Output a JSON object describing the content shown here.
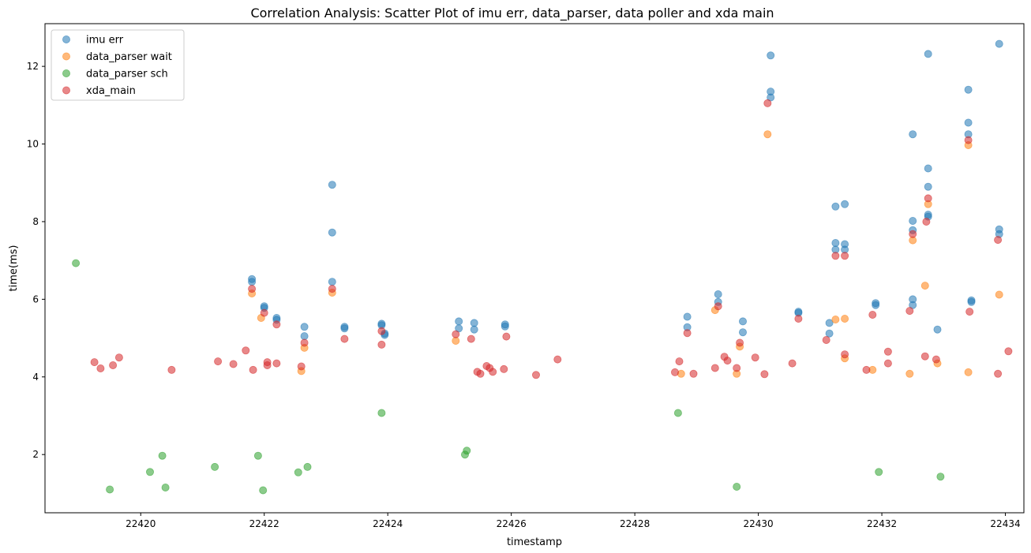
{
  "chart_data": {
    "type": "scatter",
    "title": "Correlation Analysis: Scatter Plot of imu err, data_parser, data poller and xda main",
    "xlabel": "timestamp",
    "ylabel": "time(ms)",
    "xlim": [
      22418.45,
      22434.3
    ],
    "ylim": [
      0.5,
      13.1
    ],
    "xticks": [
      22420,
      22422,
      22424,
      22426,
      22428,
      22430,
      22432,
      22434
    ],
    "yticks": [
      2,
      4,
      6,
      8,
      10,
      12
    ],
    "grid": false,
    "legend_position": "top-left",
    "series": [
      {
        "name": "imu err",
        "color": "#1f77b4",
        "points": [
          [
            22421.8,
            6.52
          ],
          [
            22421.8,
            6.45
          ],
          [
            22422.0,
            5.82
          ],
          [
            22422.0,
            5.78
          ],
          [
            22422.2,
            5.52
          ],
          [
            22422.2,
            5.47
          ],
          [
            22422.65,
            5.29
          ],
          [
            22422.65,
            5.05
          ],
          [
            22423.1,
            8.95
          ],
          [
            22423.1,
            7.72
          ],
          [
            22423.1,
            6.45
          ],
          [
            22423.3,
            5.29
          ],
          [
            22423.3,
            5.25
          ],
          [
            22423.9,
            5.37
          ],
          [
            22423.9,
            5.33
          ],
          [
            22423.95,
            5.12
          ],
          [
            22423.95,
            5.08
          ],
          [
            22425.15,
            5.43
          ],
          [
            22425.15,
            5.25
          ],
          [
            22425.4,
            5.39
          ],
          [
            22425.4,
            5.22
          ],
          [
            22425.9,
            5.35
          ],
          [
            22425.9,
            5.3
          ],
          [
            22428.85,
            5.55
          ],
          [
            22428.85,
            5.28
          ],
          [
            22429.35,
            6.13
          ],
          [
            22429.35,
            5.93
          ],
          [
            22429.75,
            5.43
          ],
          [
            22429.75,
            5.15
          ],
          [
            22430.2,
            12.28
          ],
          [
            22430.2,
            11.35
          ],
          [
            22430.2,
            11.2
          ],
          [
            22430.65,
            5.68
          ],
          [
            22430.65,
            5.65
          ],
          [
            22431.15,
            5.39
          ],
          [
            22431.15,
            5.12
          ],
          [
            22431.25,
            8.39
          ],
          [
            22431.25,
            7.45
          ],
          [
            22431.25,
            7.28
          ],
          [
            22431.4,
            8.45
          ],
          [
            22431.4,
            7.42
          ],
          [
            22431.4,
            7.28
          ],
          [
            22431.9,
            5.9
          ],
          [
            22431.9,
            5.85
          ],
          [
            22432.5,
            10.25
          ],
          [
            22432.5,
            8.02
          ],
          [
            22432.5,
            7.78
          ],
          [
            22432.5,
            6.0
          ],
          [
            22432.5,
            5.85
          ],
          [
            22432.75,
            12.32
          ],
          [
            22432.75,
            9.37
          ],
          [
            22432.75,
            8.9
          ],
          [
            22432.75,
            8.18
          ],
          [
            22432.75,
            8.13
          ],
          [
            22432.9,
            5.22
          ],
          [
            22433.4,
            11.4
          ],
          [
            22433.4,
            10.55
          ],
          [
            22433.4,
            10.25
          ],
          [
            22433.45,
            5.97
          ],
          [
            22433.45,
            5.93
          ],
          [
            22433.9,
            12.58
          ],
          [
            22433.9,
            7.8
          ],
          [
            22433.9,
            7.68
          ]
        ]
      },
      {
        "name": "data_parser wait",
        "color": "#ff7f0e",
        "points": [
          [
            22421.8,
            6.15
          ],
          [
            22421.95,
            5.52
          ],
          [
            22422.6,
            4.15
          ],
          [
            22422.65,
            4.75
          ],
          [
            22423.1,
            6.17
          ],
          [
            22425.1,
            4.93
          ],
          [
            22428.75,
            4.08
          ],
          [
            22429.3,
            5.72
          ],
          [
            22429.65,
            4.08
          ],
          [
            22429.7,
            4.78
          ],
          [
            22430.15,
            10.25
          ],
          [
            22431.25,
            5.48
          ],
          [
            22431.4,
            5.5
          ],
          [
            22431.4,
            4.48
          ],
          [
            22431.85,
            4.18
          ],
          [
            22432.45,
            4.08
          ],
          [
            22432.5,
            7.52
          ],
          [
            22432.7,
            6.35
          ],
          [
            22432.75,
            8.45
          ],
          [
            22432.9,
            4.35
          ],
          [
            22433.4,
            9.97
          ],
          [
            22433.4,
            4.12
          ],
          [
            22433.9,
            6.12
          ]
        ]
      },
      {
        "name": "data_parser sch",
        "color": "#2ca02c",
        "points": [
          [
            22418.95,
            6.93
          ],
          [
            22419.5,
            1.1
          ],
          [
            22420.15,
            1.55
          ],
          [
            22420.35,
            1.97
          ],
          [
            22420.4,
            1.15
          ],
          [
            22421.2,
            1.68
          ],
          [
            22421.9,
            1.97
          ],
          [
            22421.98,
            1.08
          ],
          [
            22422.55,
            1.54
          ],
          [
            22422.7,
            1.68
          ],
          [
            22423.9,
            3.07
          ],
          [
            22425.25,
            2.0
          ],
          [
            22425.28,
            2.1
          ],
          [
            22428.7,
            3.07
          ],
          [
            22429.65,
            1.17
          ],
          [
            22431.95,
            1.55
          ],
          [
            22432.95,
            1.43
          ]
        ]
      },
      {
        "name": "xda_main",
        "color": "#d62728",
        "points": [
          [
            22419.25,
            4.38
          ],
          [
            22419.35,
            4.22
          ],
          [
            22419.55,
            4.3
          ],
          [
            22419.65,
            4.5
          ],
          [
            22420.5,
            4.18
          ],
          [
            22421.25,
            4.4
          ],
          [
            22421.5,
            4.33
          ],
          [
            22421.7,
            4.68
          ],
          [
            22421.8,
            6.27
          ],
          [
            22421.82,
            4.18
          ],
          [
            22422.0,
            5.65
          ],
          [
            22422.05,
            4.38
          ],
          [
            22422.05,
            4.3
          ],
          [
            22422.2,
            5.35
          ],
          [
            22422.2,
            4.35
          ],
          [
            22422.6,
            4.27
          ],
          [
            22422.65,
            4.88
          ],
          [
            22423.1,
            6.27
          ],
          [
            22423.3,
            4.98
          ],
          [
            22423.9,
            5.18
          ],
          [
            22423.9,
            4.83
          ],
          [
            22425.1,
            5.1
          ],
          [
            22425.35,
            4.98
          ],
          [
            22425.45,
            4.13
          ],
          [
            22425.5,
            4.08
          ],
          [
            22425.6,
            4.28
          ],
          [
            22425.65,
            4.23
          ],
          [
            22425.7,
            4.13
          ],
          [
            22425.88,
            4.2
          ],
          [
            22425.92,
            5.04
          ],
          [
            22426.4,
            4.05
          ],
          [
            22426.75,
            4.45
          ],
          [
            22428.65,
            4.12
          ],
          [
            22428.72,
            4.4
          ],
          [
            22428.85,
            5.13
          ],
          [
            22428.95,
            4.08
          ],
          [
            22429.3,
            4.23
          ],
          [
            22429.35,
            5.82
          ],
          [
            22429.45,
            4.52
          ],
          [
            22429.5,
            4.42
          ],
          [
            22429.65,
            4.23
          ],
          [
            22429.7,
            4.88
          ],
          [
            22429.95,
            4.5
          ],
          [
            22430.1,
            4.07
          ],
          [
            22430.15,
            11.05
          ],
          [
            22430.55,
            4.35
          ],
          [
            22430.65,
            5.5
          ],
          [
            22431.1,
            4.95
          ],
          [
            22431.25,
            7.12
          ],
          [
            22431.4,
            7.12
          ],
          [
            22431.4,
            4.58
          ],
          [
            22431.75,
            4.18
          ],
          [
            22431.85,
            5.6
          ],
          [
            22432.1,
            4.65
          ],
          [
            22432.1,
            4.35
          ],
          [
            22432.45,
            5.7
          ],
          [
            22432.5,
            7.68
          ],
          [
            22432.7,
            4.53
          ],
          [
            22432.72,
            8.0
          ],
          [
            22432.75,
            8.6
          ],
          [
            22432.88,
            4.45
          ],
          [
            22433.4,
            10.1
          ],
          [
            22433.42,
            5.68
          ],
          [
            22433.88,
            7.53
          ],
          [
            22433.88,
            4.08
          ],
          [
            22434.05,
            4.66
          ]
        ]
      }
    ]
  }
}
